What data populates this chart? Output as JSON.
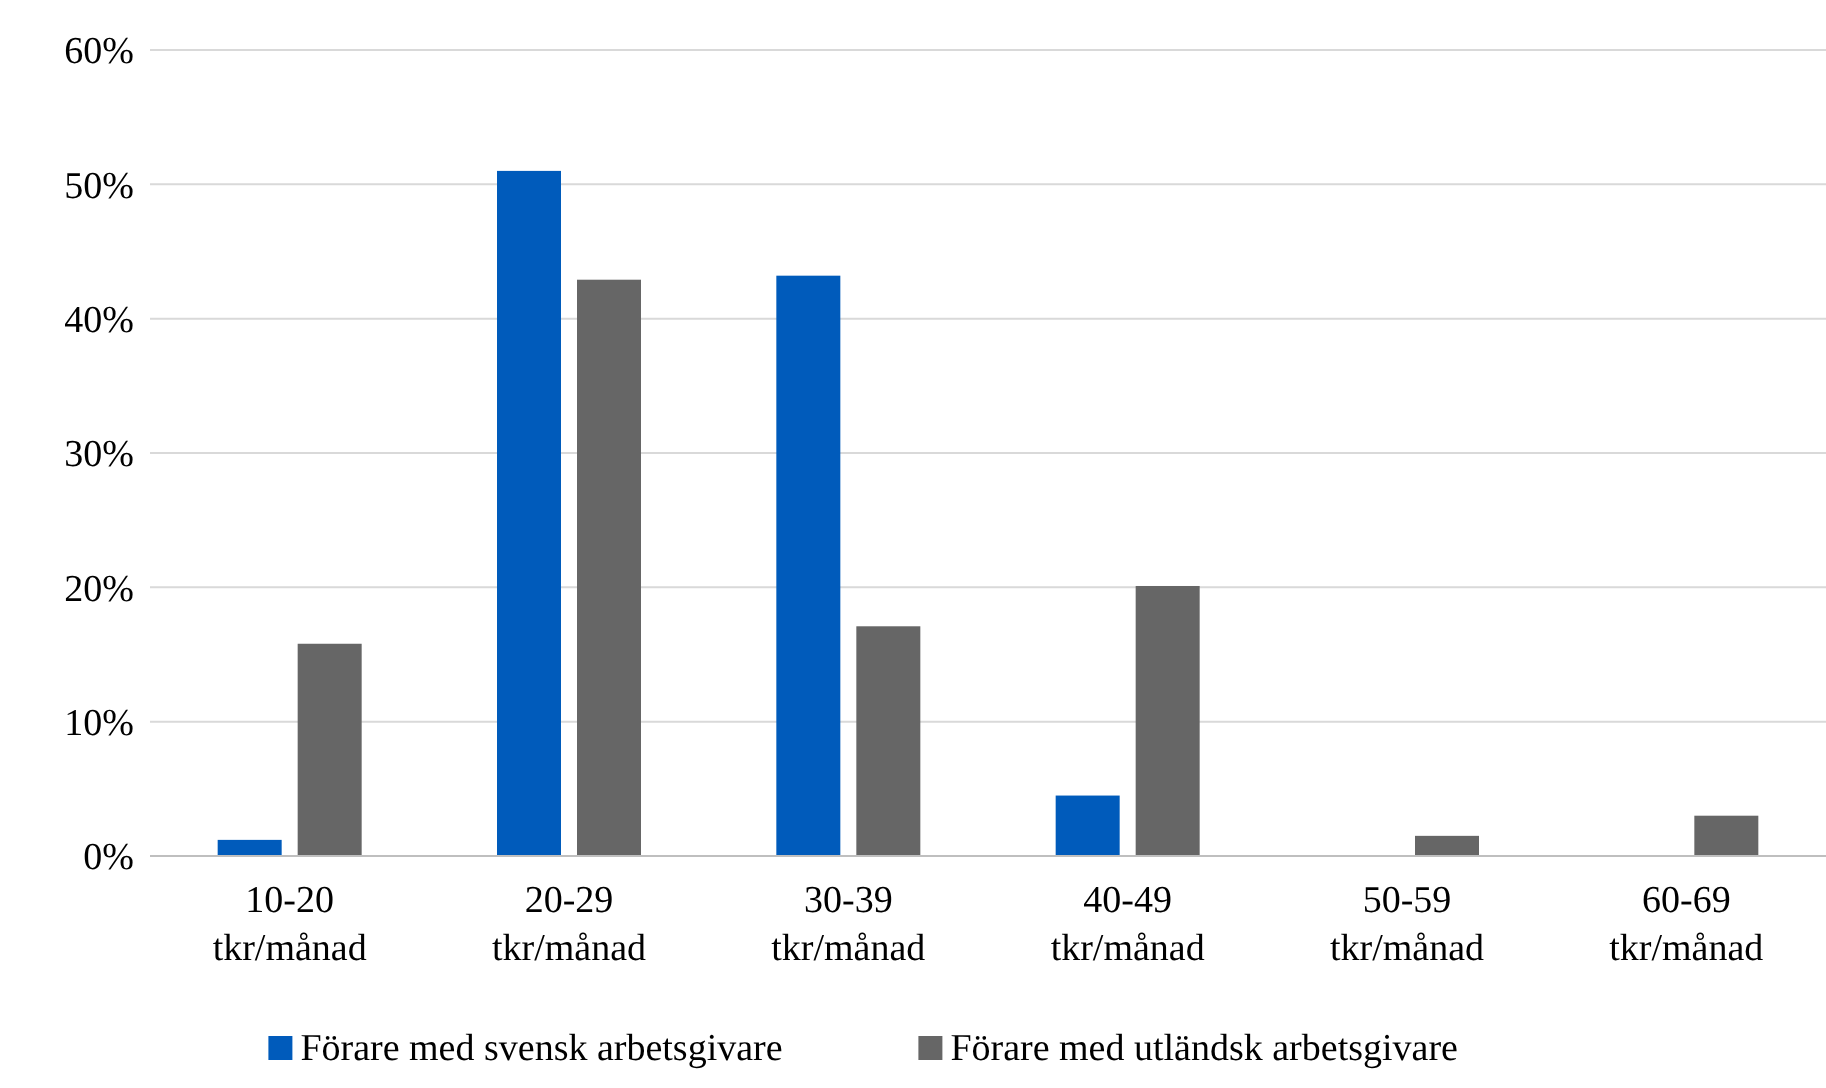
{
  "chart_data": {
    "type": "bar",
    "categories": [
      "10-20 tkr/månad",
      "20-29 tkr/månad",
      "30-39 tkr/månad",
      "40-49 tkr/månad",
      "50-59 tkr/månad",
      "60-69 tkr/månad"
    ],
    "series": [
      {
        "name": "Förare med svensk arbetsgivare",
        "color": "#005bbb",
        "values": [
          1.2,
          51.0,
          43.2,
          4.5,
          0,
          0
        ]
      },
      {
        "name": "Förare med utländsk arbetsgivare",
        "color": "#666666",
        "values": [
          15.8,
          42.9,
          17.1,
          20.1,
          1.5,
          3.0
        ]
      }
    ],
    "ylim": [
      0,
      60
    ],
    "yticks": [
      {
        "value": 0,
        "label": "0%"
      },
      {
        "value": 10,
        "label": "10%"
      },
      {
        "value": 20,
        "label": "20%"
      },
      {
        "value": 30,
        "label": "30%"
      },
      {
        "value": 40,
        "label": "40%"
      },
      {
        "value": 50,
        "label": "50%"
      },
      {
        "value": 60,
        "label": "60%"
      }
    ],
    "grid": "y",
    "legend": "bottom"
  }
}
